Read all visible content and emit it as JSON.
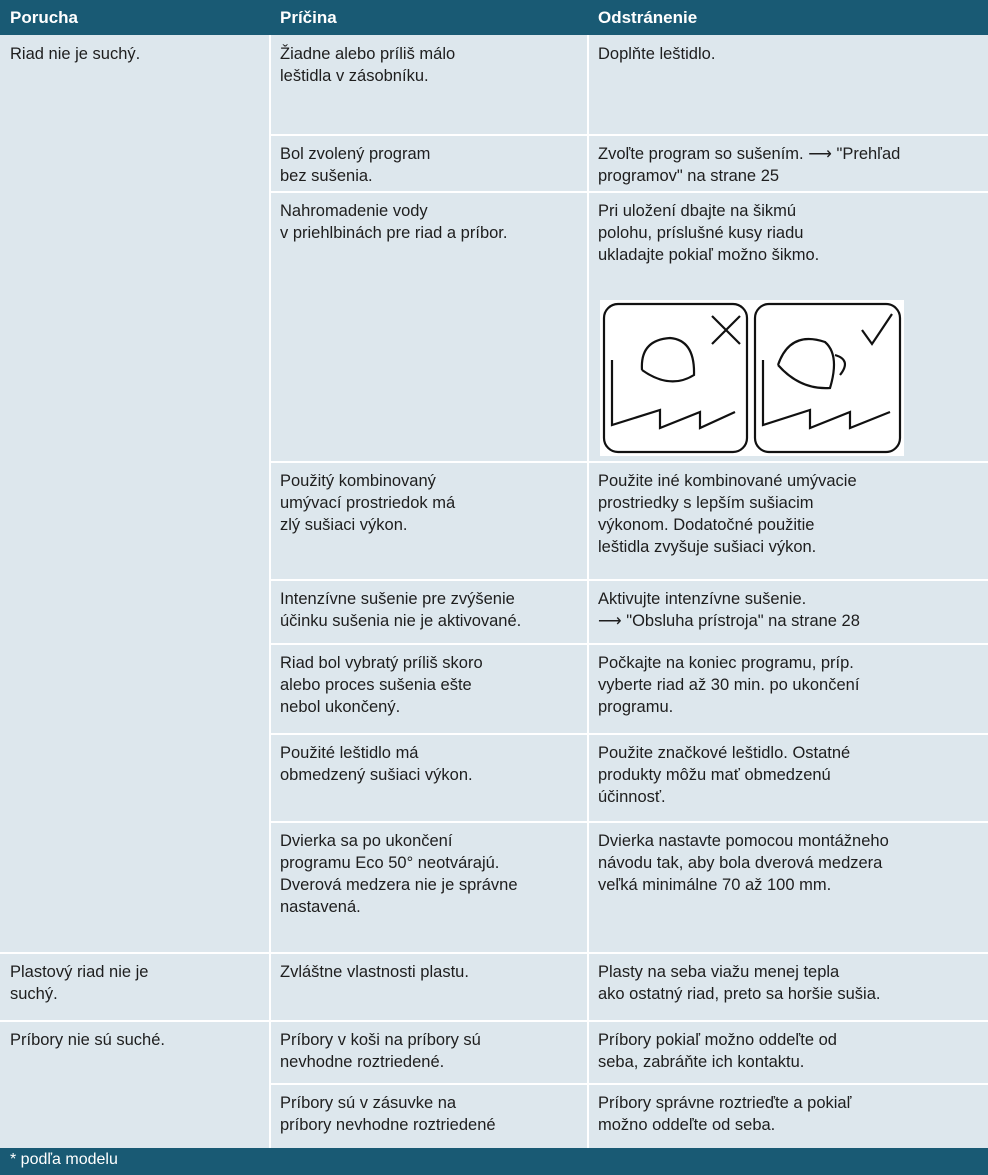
{
  "header": {
    "columns": [
      "Porucha",
      "Príčina",
      "Odstránenie"
    ]
  },
  "groups": [
    {
      "fault": [
        "Riad nie je suchý."
      ],
      "rows": [
        {
          "cause": [
            "Žiadne alebo príliš málo",
            "leštidla v zásobníku."
          ],
          "remedy": [
            "Doplňte leštidlo."
          ]
        },
        {
          "cause": [
            "Bol zvolený program",
            "bez sušenia."
          ],
          "remedy": [
            "Zvoľte program so sušením. ⟶ \"Prehľad",
            "programov\" na strane 25"
          ]
        },
        {
          "cause": [
            "Nahromadenie vody",
            "v priehlbinách pre riad a príbor."
          ],
          "remedy": [
            "Pri uložení dbajte na šikmú",
            "polohu, príslušné kusy riadu",
            "ukladajte pokiaľ možno šikmo."
          ]
        },
        {
          "cause": [
            "Použitý kombinovaný",
            "umývací prostriedok má",
            "zlý sušiaci výkon."
          ],
          "remedy": [
            "Použite iné kombinované umývacie",
            "prostriedky s lepším sušiacim",
            "výkonom. Dodatočné použitie",
            "leštidla zvyšuje sušiaci výkon."
          ]
        },
        {
          "cause": [
            "Intenzívne sušenie pre zvýšenie",
            "účinku sušenia nie je aktivované."
          ],
          "remedy": [
            "Aktivujte intenzívne sušenie.",
            "⟶ \"Obsluha prístroja\" na strane 28"
          ]
        },
        {
          "cause": [
            "Riad bol vybratý príliš skoro",
            "alebo proces sušenia ešte",
            "nebol ukončený."
          ],
          "remedy": [
            "Počkajte na koniec programu, príp.",
            "vyberte riad až 30 min. po ukončení",
            "programu."
          ]
        },
        {
          "cause": [
            "Použité leštidlo má",
            "obmedzený sušiaci výkon."
          ],
          "remedy": [
            "Použite značkové leštidlo. Ostatné",
            "produkty môžu mať obmedzenú",
            "účinnosť."
          ]
        },
        {
          "cause": [
            "Dvierka sa po ukončení",
            "programu Eco 50° neotvárajú.",
            "Dverová medzera nie je správne",
            "nastavená."
          ],
          "remedy": [
            "Dvierka nastavte pomocou montážneho",
            "návodu tak, aby bola dverová medzera",
            "veľká minimálne 70 až 100 mm."
          ]
        }
      ]
    },
    {
      "fault": [
        "Plastový riad nie je",
        "suchý."
      ],
      "rows": [
        {
          "cause": [
            "Zvláštne vlastnosti plastu."
          ],
          "remedy": [
            "Plasty na seba viažu menej tepla",
            "ako ostatný riad, preto sa horšie sušia."
          ]
        }
      ]
    },
    {
      "fault": [
        "Príbory nie sú suché."
      ],
      "rows": [
        {
          "cause": [
            "Príbory v koši na príbory sú",
            "nevhodne roztriedené."
          ],
          "remedy": [
            "Príbory pokiaľ možno oddeľte od",
            "seba, zabráňte ich kontaktu."
          ]
        },
        {
          "cause": [
            "Príbory sú v zásuvke na",
            "príbory nevhodne roztriedené"
          ],
          "remedy": [
            "Príbory správne roztrieďte a pokiaľ",
            "možno oddeľte od seba."
          ]
        }
      ]
    }
  ],
  "footer": "* podľa modelu"
}
